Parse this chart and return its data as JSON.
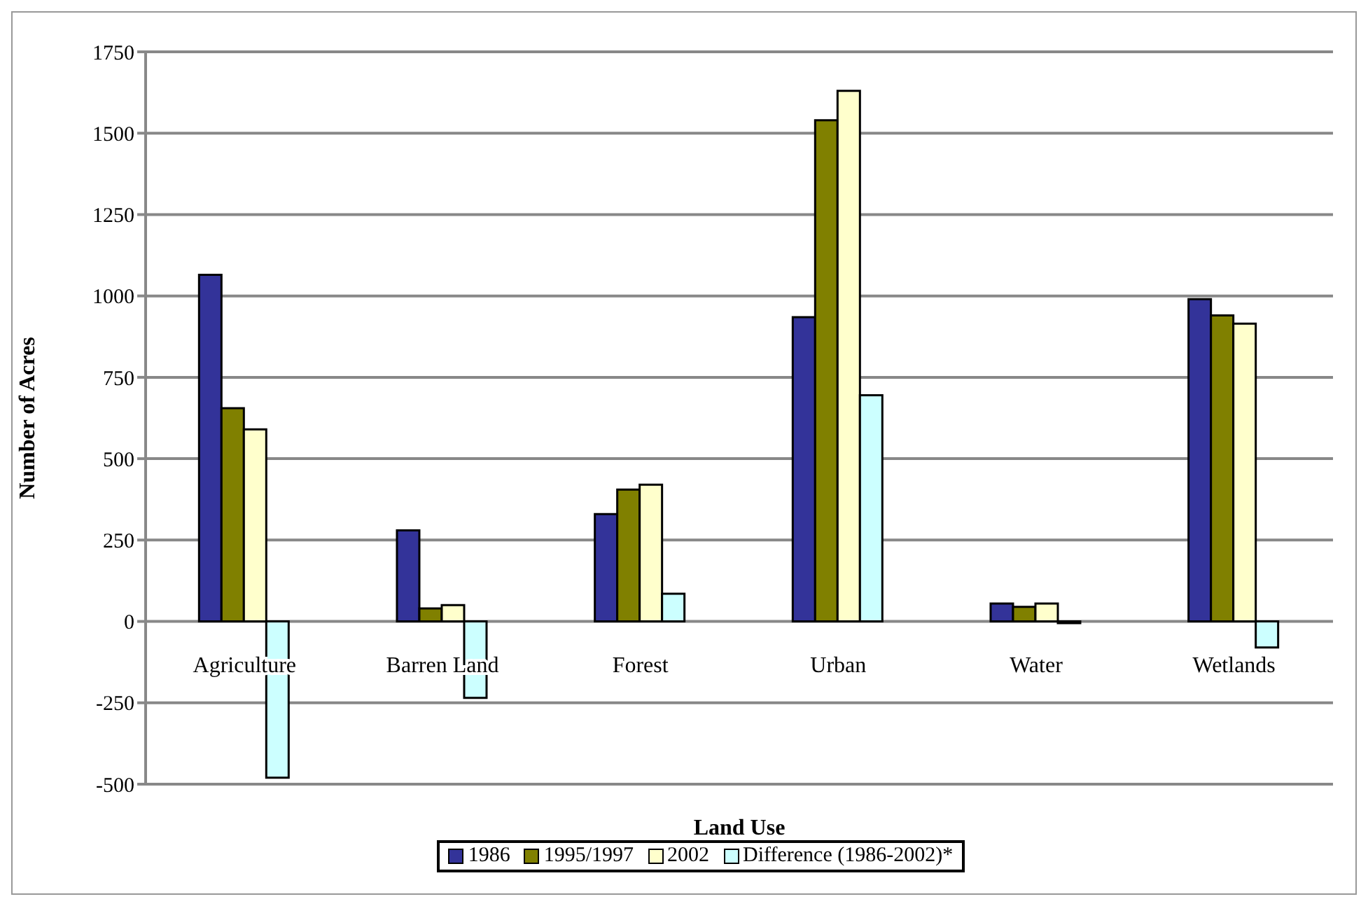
{
  "chart_data": {
    "type": "bar",
    "xlabel": "Land Use",
    "ylabel": "Number of Acres",
    "categories": [
      "Agriculture",
      "Barren Land",
      "Forest",
      "Urban",
      "Water",
      "Wetlands"
    ],
    "series": [
      {
        "name": "1986",
        "color": "#333399",
        "values": [
          1065,
          280,
          330,
          935,
          55,
          990
        ]
      },
      {
        "name": "1995/1997",
        "color": "#808000",
        "values": [
          655,
          40,
          405,
          1540,
          45,
          940
        ]
      },
      {
        "name": "2002",
        "color": "#ffffcc",
        "values": [
          590,
          50,
          420,
          1630,
          55,
          915
        ]
      },
      {
        "name": "Difference (1986-2002)*",
        "color": "#ccffff",
        "values": [
          -480,
          -235,
          85,
          695,
          -5,
          -80
        ]
      }
    ],
    "ylim": [
      -500,
      1750
    ],
    "yticks": [
      -500,
      -250,
      0,
      250,
      500,
      750,
      1000,
      1250,
      1500,
      1750
    ],
    "grid": "y",
    "legend": "bottom"
  }
}
